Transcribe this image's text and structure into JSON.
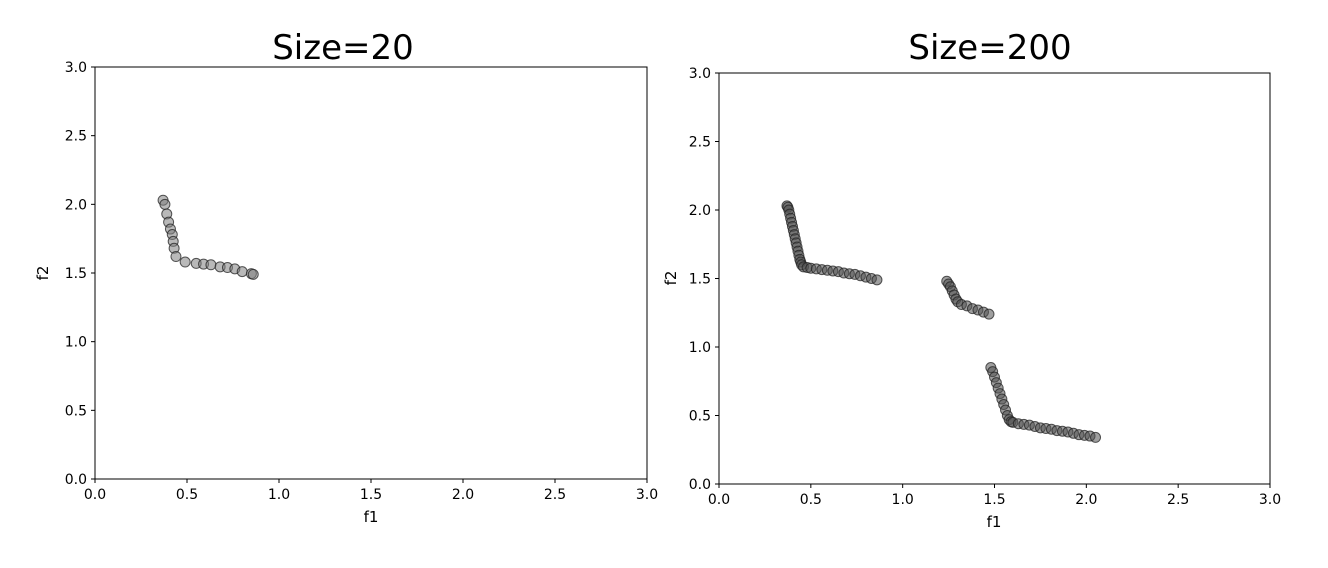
{
  "chart_data": [
    {
      "type": "scatter",
      "title": "Size=20",
      "xlabel": "f1",
      "ylabel": "f2",
      "xlim": [
        0,
        3
      ],
      "ylim": [
        0,
        3
      ],
      "xticks": [
        "0.0",
        "0.5",
        "1.0",
        "1.5",
        "2.0",
        "2.5",
        "3.0"
      ],
      "yticks": [
        "0.0",
        "0.5",
        "1.0",
        "1.5",
        "2.0",
        "2.5",
        "3.0"
      ],
      "grid": false,
      "marker_color": "#808080",
      "series": [
        {
          "x": [
            0.37,
            0.38,
            0.39,
            0.4,
            0.41,
            0.42,
            0.425,
            0.43,
            0.44,
            0.49,
            0.55,
            0.59,
            0.63,
            0.68,
            0.72,
            0.76,
            0.8,
            0.85,
            0.86
          ],
          "y": [
            2.03,
            2.0,
            1.93,
            1.87,
            1.82,
            1.78,
            1.73,
            1.68,
            1.62,
            1.58,
            1.57,
            1.565,
            1.56,
            1.545,
            1.54,
            1.53,
            1.51,
            1.495,
            1.49
          ]
        }
      ]
    },
    {
      "type": "scatter",
      "title": "Size=200",
      "xlabel": "f1",
      "ylabel": "f2",
      "xlim": [
        0,
        3
      ],
      "ylim": [
        0,
        3
      ],
      "xticks": [
        "0.0",
        "0.5",
        "1.0",
        "1.5",
        "2.0",
        "2.5",
        "3.0"
      ],
      "yticks": [
        "0.0",
        "0.5",
        "1.0",
        "1.5",
        "2.0",
        "2.5",
        "3.0"
      ],
      "grid": false,
      "marker_color": "#505050",
      "series": [
        {
          "x": [
            0.37,
            0.375,
            0.38,
            0.385,
            0.39,
            0.395,
            0.4,
            0.405,
            0.41,
            0.415,
            0.42,
            0.425,
            0.43,
            0.435,
            0.44,
            0.445,
            0.45,
            0.46,
            0.48,
            0.5,
            0.53,
            0.56,
            0.59,
            0.62,
            0.65,
            0.68,
            0.71,
            0.74,
            0.77,
            0.8,
            0.83,
            0.86,
            1.24,
            1.25,
            1.26,
            1.27,
            1.28,
            1.29,
            1.3,
            1.32,
            1.35,
            1.38,
            1.41,
            1.44,
            1.47,
            1.48,
            1.49,
            1.5,
            1.51,
            1.52,
            1.53,
            1.54,
            1.55,
            1.56,
            1.57,
            1.58,
            1.59,
            1.6,
            1.63,
            1.66,
            1.69,
            1.72,
            1.75,
            1.78,
            1.81,
            1.84,
            1.87,
            1.9,
            1.93,
            1.96,
            1.99,
            2.02,
            2.05
          ],
          "y": [
            2.03,
            2.02,
            2.0,
            1.97,
            1.94,
            1.91,
            1.88,
            1.85,
            1.82,
            1.79,
            1.76,
            1.73,
            1.7,
            1.67,
            1.64,
            1.62,
            1.6,
            1.585,
            1.58,
            1.575,
            1.57,
            1.565,
            1.56,
            1.555,
            1.55,
            1.54,
            1.535,
            1.53,
            1.52,
            1.51,
            1.5,
            1.49,
            1.48,
            1.46,
            1.44,
            1.41,
            1.38,
            1.35,
            1.33,
            1.31,
            1.3,
            1.28,
            1.27,
            1.255,
            1.24,
            0.85,
            0.82,
            0.78,
            0.74,
            0.7,
            0.66,
            0.62,
            0.58,
            0.54,
            0.5,
            0.47,
            0.455,
            0.45,
            0.44,
            0.435,
            0.43,
            0.42,
            0.41,
            0.405,
            0.4,
            0.39,
            0.385,
            0.38,
            0.37,
            0.36,
            0.355,
            0.35,
            0.34
          ]
        }
      ]
    }
  ]
}
